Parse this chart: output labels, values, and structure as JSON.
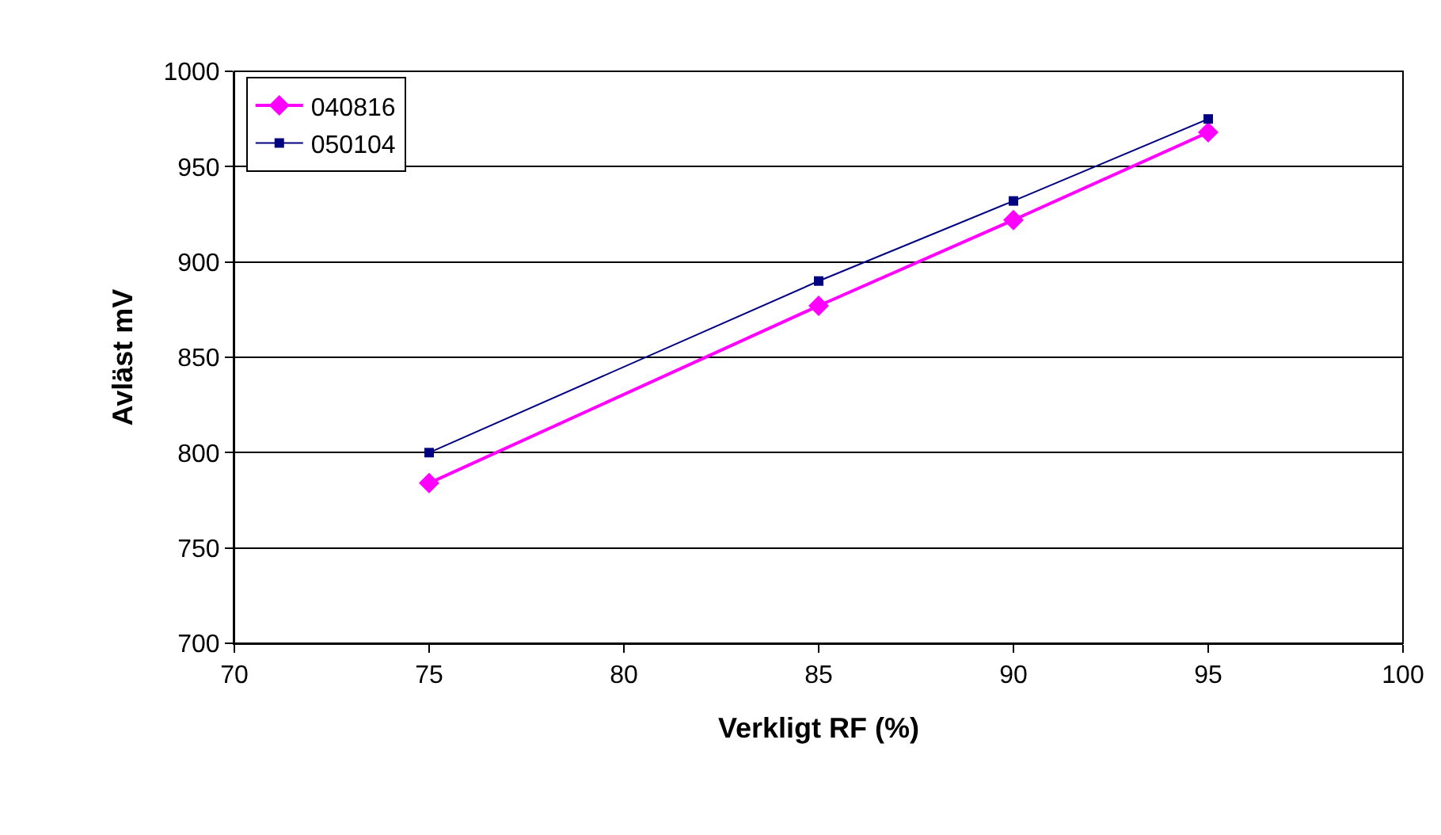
{
  "chart_data": {
    "type": "line",
    "xlabel": "Verkligt RF (%)",
    "ylabel": "Avläst mV",
    "x": [
      75,
      85,
      90,
      95
    ],
    "series": [
      {
        "name": "040816",
        "color": "#ff00ff",
        "marker": "diamond",
        "values": [
          784,
          877,
          922,
          968
        ]
      },
      {
        "name": "050104",
        "color": "#000080",
        "marker": "square",
        "values": [
          800,
          890,
          932,
          975
        ]
      }
    ],
    "xlim": [
      70,
      100
    ],
    "xticks": [
      70,
      75,
      80,
      85,
      90,
      95,
      100
    ],
    "ylim": [
      700,
      1000
    ],
    "yticks": [
      700,
      750,
      800,
      850,
      900,
      950,
      1000
    ],
    "grid": "y",
    "legend": "top left",
    "line_style": "solid"
  }
}
